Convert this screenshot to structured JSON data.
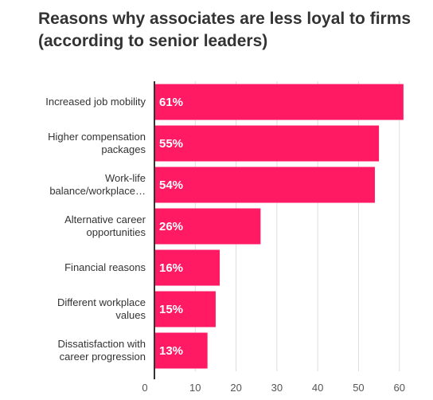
{
  "chart_data": {
    "type": "bar",
    "orientation": "horizontal",
    "title_lines": [
      "Reasons why associates are less loyal to firms",
      "(according to senior leaders)"
    ],
    "categories": [
      [
        "Increased job mobility"
      ],
      [
        "Higher compensation",
        "packages"
      ],
      [
        "Work-life",
        "balance/workplace…"
      ],
      [
        "Alternative career",
        "opportunities"
      ],
      [
        "Financial reasons"
      ],
      [
        "Different workplace",
        "values"
      ],
      [
        "Dissatisfaction with",
        "career progression"
      ]
    ],
    "values": [
      61,
      55,
      54,
      26,
      16,
      15,
      13
    ],
    "data_labels": [
      "61%",
      "55%",
      "54%",
      "26%",
      "16%",
      "15%",
      "13%"
    ],
    "xticks": [
      0,
      10,
      20,
      30,
      40,
      50,
      60
    ],
    "xlim": [
      0,
      62
    ],
    "grid": true,
    "bar_color": "#ff1a63"
  }
}
